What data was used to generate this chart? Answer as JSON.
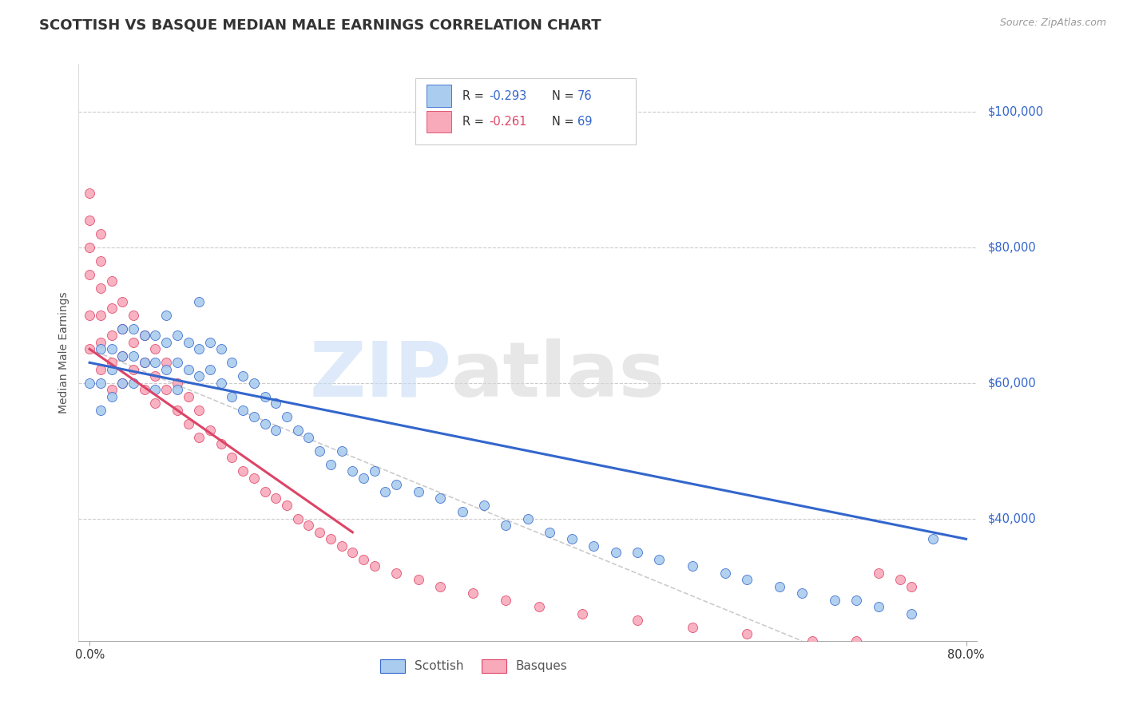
{
  "title": "SCOTTISH VS BASQUE MEDIAN MALE EARNINGS CORRELATION CHART",
  "source": "Source: ZipAtlas.com",
  "ylabel": "Median Male Earnings",
  "yticks": [
    40000,
    60000,
    80000,
    100000
  ],
  "ytick_labels": [
    "$40,000",
    "$60,000",
    "$80,000",
    "$100,000"
  ],
  "ylim": [
    22000,
    107000
  ],
  "xlim": [
    -0.01,
    0.81
  ],
  "scottish_color": "#aaccee",
  "basque_color": "#f8aabb",
  "scottish_line_color": "#3366cc",
  "basque_line_color": "#dd4466",
  "background_color": "#ffffff",
  "title_fontsize": 13,
  "axis_label_fontsize": 10,
  "tick_label_fontsize": 10.5,
  "scottish_scatter_x": [
    0.0,
    0.01,
    0.01,
    0.01,
    0.02,
    0.02,
    0.02,
    0.03,
    0.03,
    0.03,
    0.04,
    0.04,
    0.04,
    0.05,
    0.05,
    0.06,
    0.06,
    0.06,
    0.07,
    0.07,
    0.07,
    0.08,
    0.08,
    0.08,
    0.09,
    0.09,
    0.1,
    0.1,
    0.1,
    0.11,
    0.11,
    0.12,
    0.12,
    0.13,
    0.13,
    0.14,
    0.14,
    0.15,
    0.15,
    0.16,
    0.16,
    0.17,
    0.17,
    0.18,
    0.19,
    0.2,
    0.21,
    0.22,
    0.23,
    0.24,
    0.25,
    0.26,
    0.27,
    0.28,
    0.3,
    0.32,
    0.34,
    0.36,
    0.38,
    0.4,
    0.42,
    0.44,
    0.46,
    0.48,
    0.5,
    0.52,
    0.55,
    0.58,
    0.6,
    0.63,
    0.65,
    0.68,
    0.7,
    0.72,
    0.75,
    0.77
  ],
  "scottish_scatter_y": [
    60000,
    65000,
    60000,
    56000,
    65000,
    62000,
    58000,
    68000,
    64000,
    60000,
    68000,
    64000,
    60000,
    67000,
    63000,
    67000,
    63000,
    59000,
    70000,
    66000,
    62000,
    67000,
    63000,
    59000,
    66000,
    62000,
    72000,
    65000,
    61000,
    66000,
    62000,
    65000,
    60000,
    63000,
    58000,
    61000,
    56000,
    60000,
    55000,
    58000,
    54000,
    57000,
    53000,
    55000,
    53000,
    52000,
    50000,
    48000,
    50000,
    47000,
    46000,
    47000,
    44000,
    45000,
    44000,
    43000,
    41000,
    42000,
    39000,
    40000,
    38000,
    37000,
    36000,
    35000,
    35000,
    34000,
    33000,
    32000,
    31000,
    30000,
    29000,
    28000,
    28000,
    27000,
    26000,
    37000
  ],
  "scottish_line_x": [
    0.0,
    0.8
  ],
  "scottish_line_y": [
    63000,
    37000
  ],
  "basque_scatter_x": [
    0.0,
    0.0,
    0.0,
    0.0,
    0.0,
    0.0,
    0.01,
    0.01,
    0.01,
    0.01,
    0.01,
    0.01,
    0.02,
    0.02,
    0.02,
    0.02,
    0.02,
    0.03,
    0.03,
    0.03,
    0.03,
    0.04,
    0.04,
    0.04,
    0.05,
    0.05,
    0.05,
    0.06,
    0.06,
    0.06,
    0.07,
    0.07,
    0.08,
    0.08,
    0.09,
    0.09,
    0.1,
    0.1,
    0.11,
    0.12,
    0.13,
    0.14,
    0.15,
    0.16,
    0.17,
    0.18,
    0.19,
    0.2,
    0.21,
    0.22,
    0.23,
    0.24,
    0.25,
    0.26,
    0.28,
    0.3,
    0.32,
    0.35,
    0.38,
    0.41,
    0.45,
    0.5,
    0.55,
    0.6,
    0.66,
    0.7,
    0.72,
    0.74,
    0.75
  ],
  "basque_scatter_y": [
    88000,
    84000,
    80000,
    76000,
    70000,
    65000,
    82000,
    78000,
    74000,
    70000,
    66000,
    62000,
    75000,
    71000,
    67000,
    63000,
    59000,
    72000,
    68000,
    64000,
    60000,
    70000,
    66000,
    62000,
    67000,
    63000,
    59000,
    65000,
    61000,
    57000,
    63000,
    59000,
    60000,
    56000,
    58000,
    54000,
    56000,
    52000,
    53000,
    51000,
    49000,
    47000,
    46000,
    44000,
    43000,
    42000,
    40000,
    39000,
    38000,
    37000,
    36000,
    35000,
    34000,
    33000,
    32000,
    31000,
    30000,
    29000,
    28000,
    27000,
    26000,
    25000,
    24000,
    23000,
    22000,
    22000,
    32000,
    31000,
    30000
  ],
  "basque_solid_line_x": [
    0.0,
    0.24
  ],
  "basque_solid_line_y": [
    65000,
    38000
  ],
  "basque_dashed_line_x": [
    0.0,
    0.65
  ],
  "basque_dashed_line_y": [
    65000,
    22000
  ]
}
